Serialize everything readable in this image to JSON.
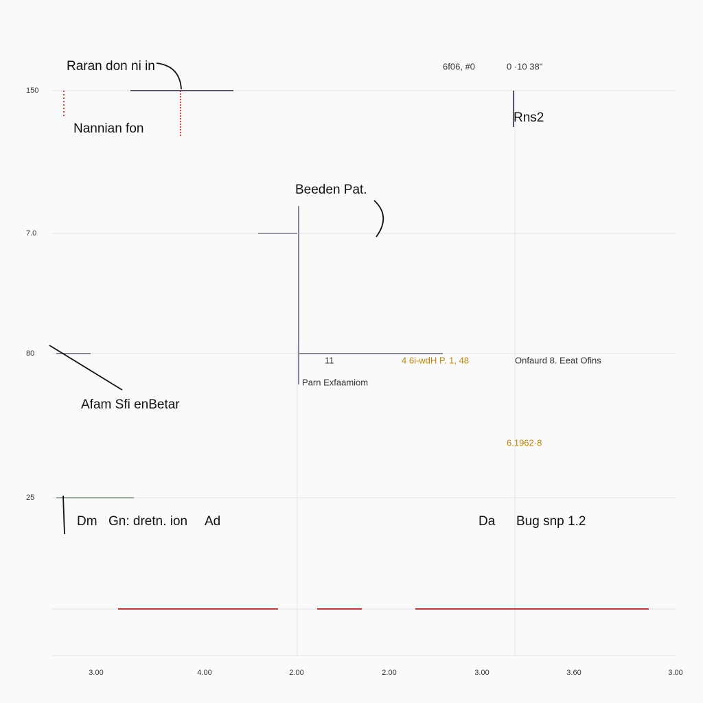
{
  "axes": {
    "y_labels": [
      "150",
      "7.0",
      "80",
      "25"
    ],
    "x_labels": [
      "3.00",
      "4.00",
      "2.00",
      "2.00",
      "3.00",
      "3.60",
      "3.00"
    ]
  },
  "annotations": {
    "top_left": "Raran don ni in",
    "left_upper": "Nannian fon",
    "center_title": "Beeden Pat.",
    "left_middle": "Afam Sfi enBetar",
    "center_note": "Parn Exfaamiom",
    "bottom_a": "Dm",
    "bottom_b": "Gn: dretn. ion",
    "bottom_c": "Ad",
    "bottom_d": "Da",
    "bottom_e": "Bug snp 1.2",
    "top_right_a": "6f06, #0",
    "top_right_b": "0 ·10 38\"",
    "right_upper": "Rns2",
    "right_middle": "Onfaurd 8. Eeat Ofins",
    "right_value": "6.1962·8",
    "center_value": "4 6i-wdH P. 1, 48",
    "center_small": "11"
  }
}
